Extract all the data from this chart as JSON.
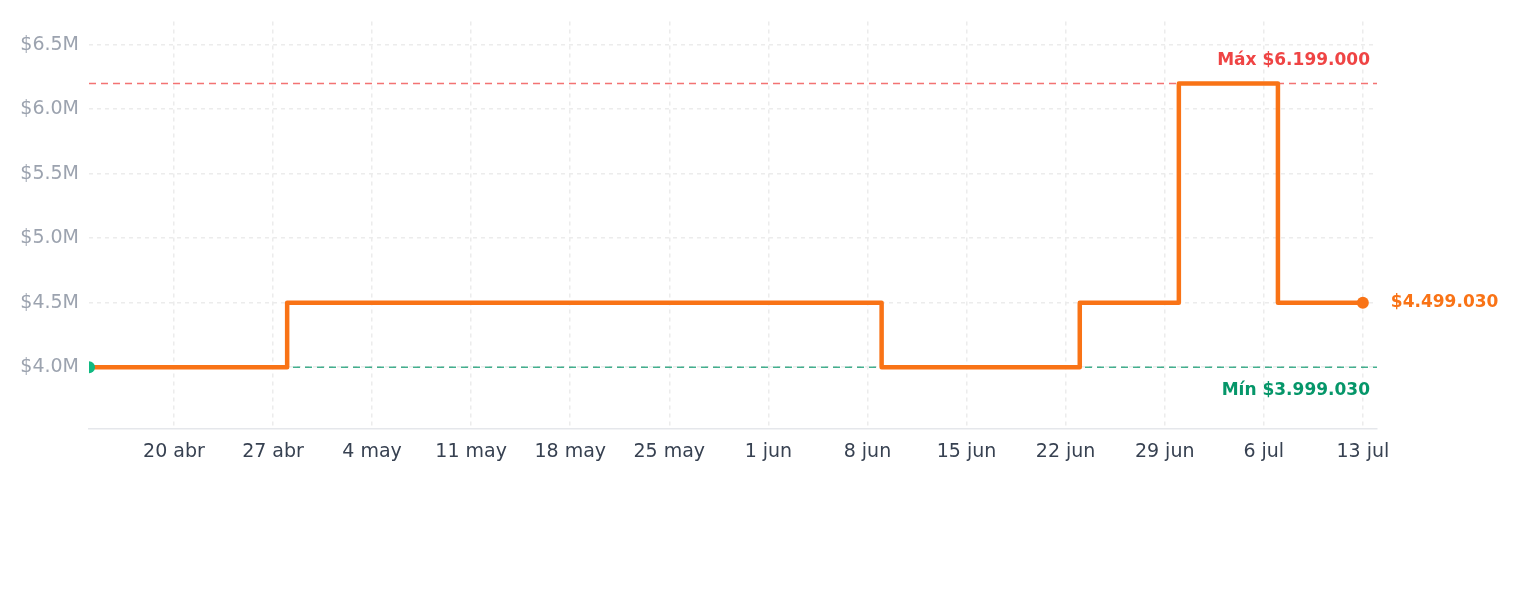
{
  "chart_data": {
    "type": "step",
    "x": [
      "--04-14",
      "--04-28",
      "--06-09",
      "--06-23",
      "--06-30",
      "--07-07",
      "--07-13"
    ],
    "series": [
      {
        "color": "#f97316",
        "marker": "none",
        "values": [
          3999030,
          4499030,
          3999030,
          4499030,
          6199000,
          4499030,
          4499030
        ]
      },
      {
        "type": "scatter",
        "color": "#10b981",
        "marker": "circle",
        "x": [
          "--04-14"
        ],
        "values": [
          3999030
        ]
      },
      {
        "type": "scatter",
        "color": "#f97316",
        "marker": "circle",
        "x": [
          "--07-13"
        ],
        "values": [
          4499030
        ],
        "value_labels": [
          "$4.499.030"
        ]
      }
    ],
    "xlim": [
      "--04-14",
      "--07-14"
    ],
    "xticks": [
      {
        "value": "--04-20",
        "label": "20 abr"
      },
      {
        "value": "--04-27",
        "label": "27 abr"
      },
      {
        "value": "--05-04",
        "label": "4 may"
      },
      {
        "value": "--05-11",
        "label": "11 may"
      },
      {
        "value": "--05-18",
        "label": "18 may"
      },
      {
        "value": "--05-25",
        "label": "25 may"
      },
      {
        "value": "--06-01",
        "label": "1 jun"
      },
      {
        "value": "--06-08",
        "label": "8 jun"
      },
      {
        "value": "--06-15",
        "label": "15 jun"
      },
      {
        "value": "--06-22",
        "label": "22 jun"
      },
      {
        "value": "--06-29",
        "label": "29 jun"
      },
      {
        "value": "--07-06",
        "label": "6 jul"
      },
      {
        "value": "--07-13",
        "label": "13 jul"
      }
    ],
    "ylim": [
      3520000,
      6680000
    ],
    "yticks": [
      {
        "value": 4000000,
        "label": "$4.0M"
      },
      {
        "value": 4500000,
        "label": "$4.5M"
      },
      {
        "value": 5000000,
        "label": "$5.0M"
      },
      {
        "value": 5500000,
        "label": "$5.5M"
      },
      {
        "value": 6000000,
        "label": "$6.0M"
      },
      {
        "value": 6500000,
        "label": "$6.5M"
      }
    ],
    "ref_lines": [
      {
        "axis": "y",
        "value": 6199000,
        "label": "Máx $6.199.000",
        "color": "#ef4444",
        "line_style": "dashed"
      },
      {
        "axis": "y",
        "value": 3999030,
        "label": "Mín $3.999.030",
        "color": "#059669",
        "line_style": "dashed"
      }
    ],
    "grid": true
  }
}
